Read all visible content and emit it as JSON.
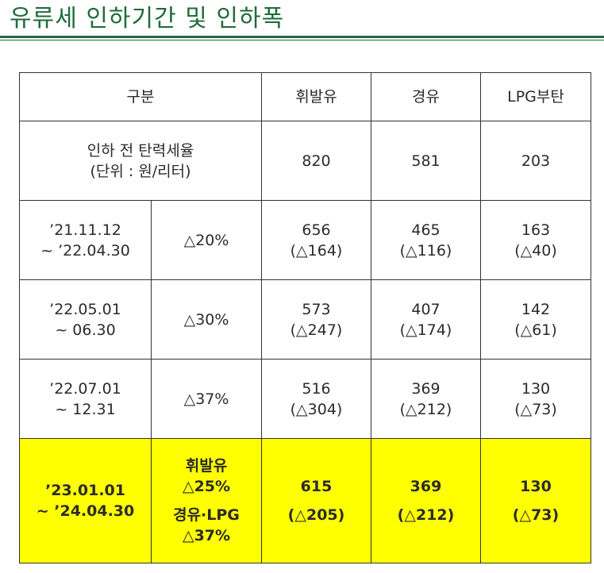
{
  "page": {
    "title": "유류세 인하기간 및 인하폭"
  },
  "table": {
    "header": {
      "category": "구분",
      "gasoline": "휘발유",
      "diesel": "경유",
      "lpg": "LPG부탄"
    },
    "base_row": {
      "label_line1": "인하 전 탄력세율",
      "label_line2": "(단위 : 원/리터)",
      "gasoline": "820",
      "diesel": "581",
      "lpg": "203"
    },
    "rows": [
      {
        "period_line1": "’21.11.12",
        "period_line2": "~ ’22.04.30",
        "rate": "△20%",
        "gasoline": "656",
        "gasoline_cut": "(△164)",
        "diesel": "465",
        "diesel_cut": "(△116)",
        "lpg": "163",
        "lpg_cut": "(△40)"
      },
      {
        "period_line1": "’22.05.01",
        "period_line2": "~ 06.30",
        "rate": "△30%",
        "gasoline": "573",
        "gasoline_cut": "(△247)",
        "diesel": "407",
        "diesel_cut": "(△174)",
        "lpg": "142",
        "lpg_cut": "(△61)"
      },
      {
        "period_line1": "’22.07.01",
        "period_line2": "~ 12.31",
        "rate": "△37%",
        "gasoline": "516",
        "gasoline_cut": "(△304)",
        "diesel": "369",
        "diesel_cut": "(△212)",
        "lpg": "130",
        "lpg_cut": "(△73)"
      }
    ],
    "current_row": {
      "period_line1": "’23.01.01",
      "period_line2": "~ ’24.04.30",
      "rate_gas_label": "휘발유",
      "rate_gas": "△25%",
      "rate_other_label": "경유·LPG",
      "rate_other": "△37%",
      "gasoline": "615",
      "gasoline_cut": "(△205)",
      "diesel": "369",
      "diesel_cut": "(△212)",
      "lpg": "130",
      "lpg_cut": "(△73)"
    },
    "colors": {
      "highlight": "#ffff00",
      "title_green": "#1f6b3a",
      "border": "#333333"
    }
  }
}
